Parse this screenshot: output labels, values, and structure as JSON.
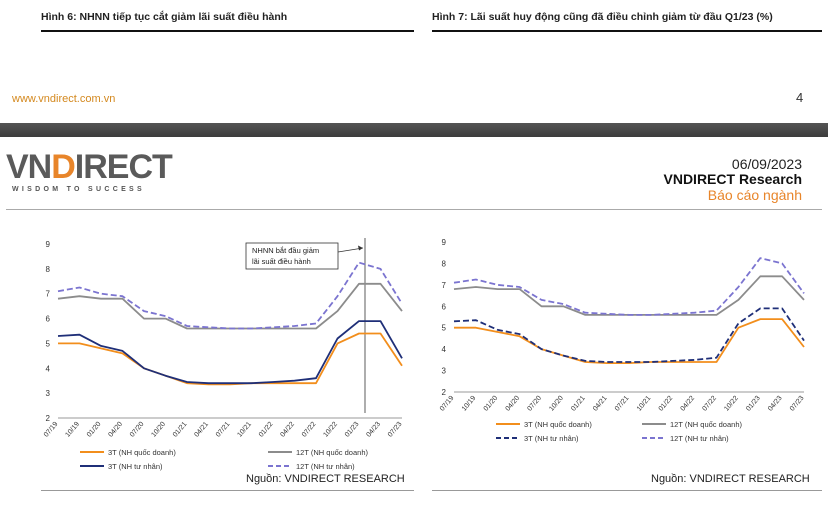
{
  "page": {
    "figure6_title": "Hình 6: NHNN tiếp tục cắt giảm lãi suất điều hành",
    "figure7_title": "Hình 7: Lãi suất huy động cũng đã điều chỉnh giảm từ đầu Q1/23 (%)",
    "website": "www.vndirect.com.vn",
    "page_number": "4"
  },
  "header": {
    "logo_part1": "VN",
    "logo_part2": "D",
    "logo_part3": "IRECT",
    "tagline": "WISDOM TO SUCCESS",
    "date": "06/09/2023",
    "brand": "VNDIRECT Research",
    "report_type": "Báo cáo ngành"
  },
  "colors": {
    "series_3t_state": "#f28e1c",
    "series_12t_state": "#8c8c8c",
    "series_3t_private": "#1f2f78",
    "series_12t_private": "#7b74d0"
  },
  "chart_data": [
    {
      "type": "line",
      "title": "",
      "xlabel": "",
      "ylabel": "",
      "ylim": [
        2,
        9
      ],
      "yticks": [
        "2",
        "3",
        "4",
        "5",
        "6",
        "7",
        "8",
        "9"
      ],
      "x": [
        "07/19",
        "10/19",
        "01/20",
        "04/20",
        "07/20",
        "10/20",
        "01/21",
        "04/21",
        "07/21",
        "10/21",
        "01/22",
        "04/22",
        "07/22",
        "10/22",
        "01/23",
        "04/23",
        "07/23"
      ],
      "series": [
        {
          "name": "3T (NH quốc doanh)",
          "style": "solid",
          "color": "#f28e1c",
          "values": [
            5.0,
            5.0,
            4.8,
            4.6,
            4.0,
            3.7,
            3.4,
            3.35,
            3.35,
            3.4,
            3.4,
            3.4,
            3.4,
            5.0,
            5.4,
            5.4,
            4.1
          ]
        },
        {
          "name": "12T (NH quốc doanh)",
          "style": "solid",
          "color": "#8c8c8c",
          "values": [
            6.8,
            6.9,
            6.8,
            6.8,
            6.0,
            6.0,
            5.6,
            5.6,
            5.6,
            5.6,
            5.6,
            5.6,
            5.6,
            6.3,
            7.4,
            7.4,
            6.3
          ]
        },
        {
          "name": "3T (NH tư nhân)",
          "style": "solid",
          "color": "#1f2f78",
          "values": [
            5.3,
            5.35,
            4.9,
            4.7,
            4.0,
            3.7,
            3.45,
            3.4,
            3.4,
            3.4,
            3.45,
            3.5,
            3.6,
            5.2,
            5.9,
            5.9,
            4.4
          ]
        },
        {
          "name": "12T (NH tư nhân)",
          "style": "dashed",
          "color": "#7b74d0",
          "values": [
            7.1,
            7.25,
            7.0,
            6.9,
            6.3,
            6.1,
            5.7,
            5.65,
            5.6,
            5.6,
            5.65,
            5.7,
            5.8,
            6.9,
            8.25,
            8.0,
            6.6
          ]
        }
      ],
      "annotation": {
        "line1": "NHNN bắt đầu giảm",
        "line2": "lãi suất điều hành"
      },
      "legend_position": "bottom",
      "source": "Nguồn: VNDIRECT RESEARCH"
    },
    {
      "type": "line",
      "title": "",
      "xlabel": "",
      "ylabel": "",
      "ylim": [
        2,
        9
      ],
      "yticks": [
        "2",
        "3",
        "4",
        "5",
        "6",
        "7",
        "8",
        "9"
      ],
      "x": [
        "07/19",
        "10/19",
        "01/20",
        "04/20",
        "07/20",
        "10/20",
        "01/21",
        "04/21",
        "07/21",
        "10/21",
        "01/22",
        "04/22",
        "07/22",
        "10/22",
        "01/23",
        "04/23",
        "07/23"
      ],
      "series": [
        {
          "name": "3T (NH quốc doanh)",
          "style": "solid",
          "color": "#f28e1c",
          "values": [
            5.0,
            5.0,
            4.8,
            4.6,
            4.0,
            3.7,
            3.4,
            3.35,
            3.35,
            3.4,
            3.4,
            3.4,
            3.4,
            5.0,
            5.4,
            5.4,
            4.1
          ]
        },
        {
          "name": "12T (NH quốc doanh)",
          "style": "solid",
          "color": "#8c8c8c",
          "values": [
            6.8,
            6.9,
            6.8,
            6.8,
            6.0,
            6.0,
            5.6,
            5.6,
            5.6,
            5.6,
            5.6,
            5.6,
            5.6,
            6.3,
            7.4,
            7.4,
            6.3
          ]
        },
        {
          "name": "3T (NH tư nhân)",
          "style": "dashed",
          "color": "#1f2f78",
          "values": [
            5.3,
            5.35,
            4.9,
            4.7,
            4.0,
            3.7,
            3.45,
            3.4,
            3.4,
            3.4,
            3.45,
            3.5,
            3.6,
            5.2,
            5.9,
            5.9,
            4.4
          ]
        },
        {
          "name": "12T (NH tư nhân)",
          "style": "dashed",
          "color": "#7b74d0",
          "values": [
            7.1,
            7.25,
            7.0,
            6.9,
            6.3,
            6.1,
            5.7,
            5.65,
            5.6,
            5.6,
            5.65,
            5.7,
            5.8,
            6.9,
            8.25,
            8.0,
            6.6
          ]
        }
      ],
      "legend_position": "bottom",
      "source": "Nguồn: VNDIRECT RESEARCH"
    }
  ]
}
